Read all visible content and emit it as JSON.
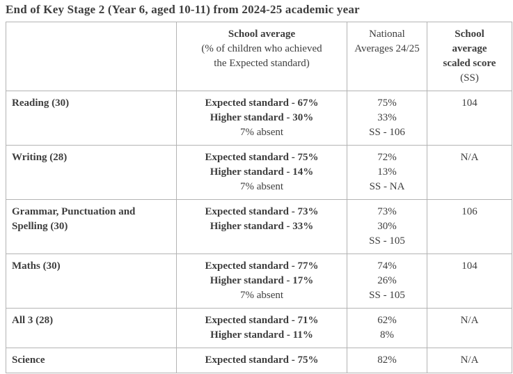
{
  "colors": {
    "text": "#3d3d3d",
    "border": "#b3b3b3",
    "background": "#ffffff"
  },
  "title": "End of Key Stage 2 (Year 6, aged 10-11) from 2024-25 academic year",
  "table": {
    "header": {
      "subject": "",
      "school_average_title": "School average",
      "school_average_subtitle": "(% of children who achieved the Expected standard)",
      "national_averages": "National Averages 24/25",
      "scaled_score_title": "School average scaled score",
      "scaled_score_suffix": "(SS)"
    },
    "rows": [
      {
        "subject": "Reading (30)",
        "school_average_lines": [
          {
            "text": "Expected standard - 67%",
            "bold": true
          },
          {
            "text": "Higher standard - 30%",
            "bold": true
          },
          {
            "text": "7% absent",
            "bold": false
          }
        ],
        "national_average_lines": [
          "75%",
          "33%",
          "SS - 106"
        ],
        "scaled_score": "104",
        "scaled_score_bold": true
      },
      {
        "subject": "Writing (28)",
        "school_average_lines": [
          {
            "text": "Expected standard - 75%",
            "bold": true
          },
          {
            "text": "Higher standard - 14%",
            "bold": true
          },
          {
            "text": "7% absent",
            "bold": false
          }
        ],
        "national_average_lines": [
          "72%",
          "13%",
          "SS - NA"
        ],
        "scaled_score": "N/A",
        "scaled_score_bold": false
      },
      {
        "subject": "Grammar, Punctuation and Spelling (30)",
        "school_average_lines": [
          {
            "text": "Expected standard - 73%",
            "bold": true
          },
          {
            "text": "Higher standard - 33%",
            "bold": true
          }
        ],
        "national_average_lines": [
          "73%",
          "30%",
          "SS - 105"
        ],
        "scaled_score": "106",
        "scaled_score_bold": true
      },
      {
        "subject": "Maths (30)",
        "school_average_lines": [
          {
            "text": "Expected standard - 77%",
            "bold": true
          },
          {
            "text": "Higher standard - 17%",
            "bold": true
          },
          {
            "text": "7% absent",
            "bold": false
          }
        ],
        "national_average_lines": [
          "74%",
          "26%",
          "SS - 105"
        ],
        "scaled_score": "104",
        "scaled_score_bold": true
      },
      {
        "subject": "All 3 (28)",
        "school_average_lines": [
          {
            "text": "Expected standard - 71%",
            "bold": true
          },
          {
            "text": "Higher standard - 11%",
            "bold": true
          }
        ],
        "national_average_lines": [
          "62%",
          "8%"
        ],
        "scaled_score": "N/A",
        "scaled_score_bold": false
      },
      {
        "subject": "Science",
        "school_average_lines": [
          {
            "text": "Expected standard - 75%",
            "bold": true
          }
        ],
        "national_average_lines": [
          "82%"
        ],
        "scaled_score": "N/A",
        "scaled_score_bold": false
      }
    ]
  }
}
